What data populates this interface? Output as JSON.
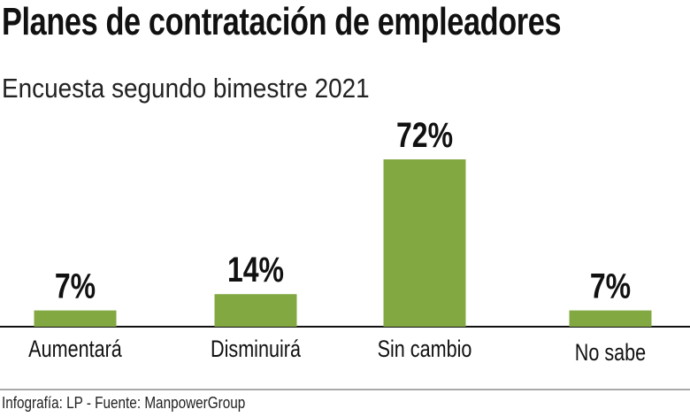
{
  "chart_data": {
    "type": "bar",
    "title": "Planes de contratación de empleadores",
    "subtitle": "Encuesta  segundo bimestre 2021",
    "categories": [
      "Aumentará",
      "Disminuirá",
      "Sin cambio",
      "No sabe"
    ],
    "values": [
      7,
      14,
      72,
      7
    ],
    "value_labels": [
      "7%",
      "14%",
      "72%",
      "7%"
    ],
    "unit": "%",
    "xlabel": "",
    "ylabel": "",
    "grid": false,
    "bar_color": "#82a842",
    "source": "Infografía: LP - Fuente: ManpowerGroup"
  }
}
